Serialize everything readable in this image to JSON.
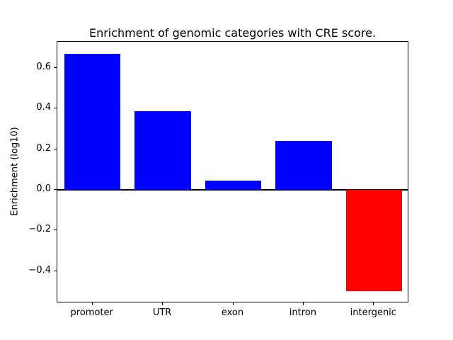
{
  "figure": {
    "background": "#ffffff"
  },
  "chart_data": {
    "type": "bar",
    "title": "Enrichment of genomic categories with CRE score.",
    "xlabel": "",
    "ylabel": "Enrichment (log10)",
    "categories": [
      "promoter",
      "UTR",
      "exon",
      "intron",
      "intergenic"
    ],
    "values": [
      0.67,
      0.385,
      0.045,
      0.24,
      -0.5
    ],
    "ylim": [
      -0.5585,
      0.7285
    ],
    "yticks": [
      {
        "value": -0.4,
        "label": "−0.4"
      },
      {
        "value": -0.2,
        "label": "−0.2"
      },
      {
        "value": 0.0,
        "label": "0.0"
      },
      {
        "value": 0.2,
        "label": "0.2"
      },
      {
        "value": 0.4,
        "label": "0.4"
      },
      {
        "value": 0.6,
        "label": "0.6"
      }
    ],
    "bar_colors": {
      "positive": "#0000ff",
      "negative": "#ff0000"
    },
    "zero_line": true,
    "grid": false,
    "legend": null
  }
}
